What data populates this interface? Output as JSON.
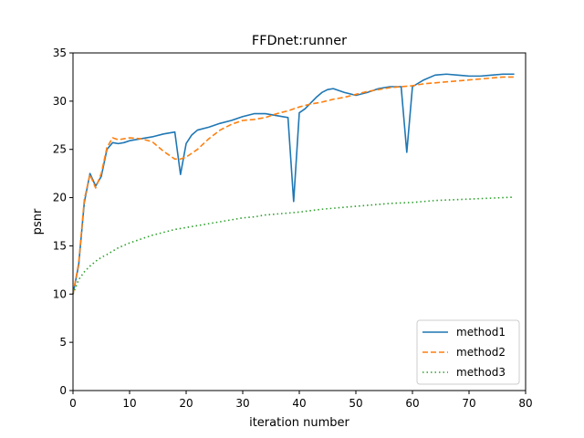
{
  "chart_data": {
    "type": "line",
    "title": "FFDnet:runner",
    "xlabel": "iteration number",
    "ylabel": "psnr",
    "xlim": [
      0,
      80
    ],
    "ylim": [
      0,
      35
    ],
    "xticks": [
      0,
      10,
      20,
      30,
      40,
      50,
      60,
      70,
      80
    ],
    "yticks": [
      0,
      5,
      10,
      15,
      20,
      25,
      30,
      35
    ],
    "grid": false,
    "legend_position": "lower-right",
    "series": [
      {
        "name": "method1",
        "color": "#1f77b4",
        "dash": "solid",
        "points": [
          [
            0,
            10.0
          ],
          [
            1,
            13.0
          ],
          [
            2,
            19.5
          ],
          [
            3,
            22.5
          ],
          [
            4,
            21.2
          ],
          [
            5,
            22.2
          ],
          [
            6,
            25.0
          ],
          [
            7,
            25.7
          ],
          [
            8,
            25.6
          ],
          [
            9,
            25.7
          ],
          [
            10,
            25.9
          ],
          [
            12,
            26.1
          ],
          [
            14,
            26.3
          ],
          [
            16,
            26.6
          ],
          [
            18,
            26.8
          ],
          [
            19,
            22.4
          ],
          [
            20,
            25.6
          ],
          [
            21,
            26.5
          ],
          [
            22,
            27.0
          ],
          [
            24,
            27.3
          ],
          [
            26,
            27.7
          ],
          [
            28,
            28.0
          ],
          [
            30,
            28.4
          ],
          [
            32,
            28.7
          ],
          [
            34,
            28.7
          ],
          [
            36,
            28.5
          ],
          [
            38,
            28.3
          ],
          [
            39,
            19.6
          ],
          [
            40,
            28.8
          ],
          [
            41,
            29.2
          ],
          [
            42,
            29.8
          ],
          [
            43,
            30.4
          ],
          [
            44,
            30.9
          ],
          [
            45,
            31.2
          ],
          [
            46,
            31.3
          ],
          [
            48,
            30.9
          ],
          [
            50,
            30.6
          ],
          [
            52,
            30.9
          ],
          [
            54,
            31.3
          ],
          [
            56,
            31.5
          ],
          [
            58,
            31.5
          ],
          [
            59,
            24.7
          ],
          [
            60,
            31.5
          ],
          [
            62,
            32.2
          ],
          [
            64,
            32.7
          ],
          [
            66,
            32.8
          ],
          [
            68,
            32.7
          ],
          [
            70,
            32.6
          ],
          [
            72,
            32.6
          ],
          [
            74,
            32.7
          ],
          [
            76,
            32.8
          ],
          [
            78,
            32.8
          ]
        ]
      },
      {
        "name": "method2",
        "color": "#ff7f0e",
        "dash": "dashed",
        "points": [
          [
            0,
            10.0
          ],
          [
            1,
            13.2
          ],
          [
            2,
            19.8
          ],
          [
            3,
            22.4
          ],
          [
            4,
            21.0
          ],
          [
            5,
            22.5
          ],
          [
            6,
            25.2
          ],
          [
            7,
            26.2
          ],
          [
            8,
            26.0
          ],
          [
            9,
            26.1
          ],
          [
            10,
            26.2
          ],
          [
            12,
            26.1
          ],
          [
            14,
            25.8
          ],
          [
            16,
            24.8
          ],
          [
            18,
            24.0
          ],
          [
            19,
            24.0
          ],
          [
            20,
            24.2
          ],
          [
            22,
            25.0
          ],
          [
            24,
            26.1
          ],
          [
            26,
            27.0
          ],
          [
            28,
            27.6
          ],
          [
            30,
            28.0
          ],
          [
            32,
            28.1
          ],
          [
            34,
            28.3
          ],
          [
            36,
            28.7
          ],
          [
            38,
            29.0
          ],
          [
            40,
            29.4
          ],
          [
            42,
            29.7
          ],
          [
            44,
            29.9
          ],
          [
            46,
            30.2
          ],
          [
            48,
            30.4
          ],
          [
            50,
            30.7
          ],
          [
            52,
            31.0
          ],
          [
            54,
            31.2
          ],
          [
            56,
            31.4
          ],
          [
            58,
            31.5
          ],
          [
            60,
            31.6
          ],
          [
            62,
            31.8
          ],
          [
            64,
            31.9
          ],
          [
            66,
            32.0
          ],
          [
            68,
            32.1
          ],
          [
            70,
            32.2
          ],
          [
            72,
            32.3
          ],
          [
            74,
            32.4
          ],
          [
            76,
            32.5
          ],
          [
            78,
            32.5
          ]
        ]
      },
      {
        "name": "method3",
        "color": "#2ca02c",
        "dash": "dotted",
        "points": [
          [
            0,
            10.0
          ],
          [
            1,
            11.5
          ],
          [
            2,
            12.3
          ],
          [
            3,
            12.9
          ],
          [
            4,
            13.4
          ],
          [
            5,
            13.8
          ],
          [
            6,
            14.1
          ],
          [
            8,
            14.8
          ],
          [
            10,
            15.3
          ],
          [
            12,
            15.7
          ],
          [
            14,
            16.1
          ],
          [
            16,
            16.4
          ],
          [
            18,
            16.7
          ],
          [
            20,
            16.9
          ],
          [
            22,
            17.1
          ],
          [
            24,
            17.3
          ],
          [
            26,
            17.5
          ],
          [
            28,
            17.7
          ],
          [
            30,
            17.9
          ],
          [
            32,
            18.0
          ],
          [
            34,
            18.2
          ],
          [
            36,
            18.3
          ],
          [
            38,
            18.4
          ],
          [
            40,
            18.5
          ],
          [
            42,
            18.65
          ],
          [
            44,
            18.8
          ],
          [
            46,
            18.9
          ],
          [
            48,
            19.0
          ],
          [
            50,
            19.1
          ],
          [
            52,
            19.2
          ],
          [
            54,
            19.3
          ],
          [
            56,
            19.4
          ],
          [
            58,
            19.45
          ],
          [
            60,
            19.5
          ],
          [
            62,
            19.6
          ],
          [
            64,
            19.7
          ],
          [
            66,
            19.75
          ],
          [
            68,
            19.8
          ],
          [
            70,
            19.85
          ],
          [
            72,
            19.9
          ],
          [
            74,
            19.95
          ],
          [
            76,
            20.0
          ],
          [
            78,
            20.05
          ]
        ]
      }
    ]
  }
}
